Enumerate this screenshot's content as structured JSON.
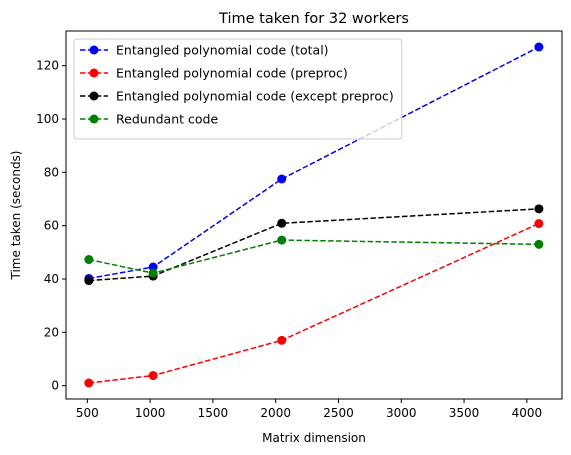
{
  "chart_data": {
    "type": "line",
    "title": "Time taken for 32 workers",
    "xlabel": "Matrix dimension",
    "ylabel": "Time taken (seconds)",
    "x": [
      512,
      1024,
      2048,
      4096
    ],
    "xlim": [
      330,
      4280
    ],
    "ylim": [
      -5,
      133
    ],
    "xticks": [
      500,
      1000,
      1500,
      2000,
      2500,
      3000,
      3500,
      4000
    ],
    "yticks": [
      0,
      20,
      40,
      60,
      80,
      100,
      120
    ],
    "grid": false,
    "legend_position": "top-left",
    "series": [
      {
        "name": "Entangled polynomial code (total)",
        "color": "#0000ff",
        "values": [
          40.2,
          44.5,
          77.5,
          127.0
        ]
      },
      {
        "name": "Entangled polynomial code (preproc)",
        "color": "#ff0000",
        "values": [
          1.0,
          3.8,
          17.0,
          60.8
        ]
      },
      {
        "name": "Entangled polynomial code (except preproc)",
        "color": "#000000",
        "values": [
          39.4,
          41.1,
          60.9,
          66.3
        ]
      },
      {
        "name": "Redundant code",
        "color": "#008000",
        "values": [
          47.3,
          42.2,
          54.6,
          53.0
        ]
      }
    ]
  }
}
